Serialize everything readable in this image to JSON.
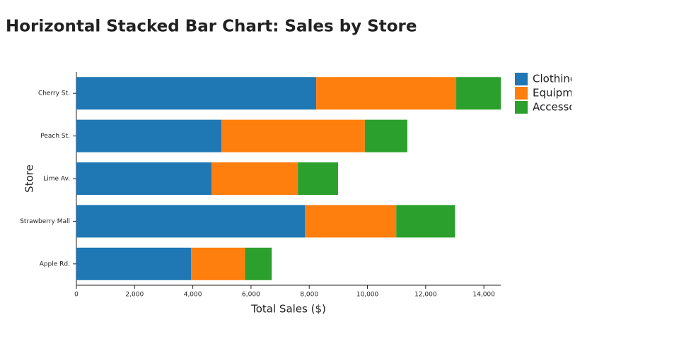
{
  "chart_data": {
    "type": "stacked-barh",
    "title": "Horizontal Stacked Bar Chart: Sales by Store",
    "x_label": "Total Sales ($)",
    "y_label": "Store",
    "categories": [
      "Apple Rd.",
      "Strawberry Mall",
      "Lime Av.",
      "Peach St.",
      "Cherry St."
    ],
    "series": [
      {
        "name": "Clothing",
        "color": "#1f77b4",
        "values": [
          3940,
          7850,
          4640,
          4980,
          8240
        ]
      },
      {
        "name": "Equipment",
        "color": "#ff7f0e",
        "values": [
          1850,
          3140,
          2970,
          4930,
          4810
        ]
      },
      {
        "name": "Accessories",
        "color": "#2ca02c",
        "values": [
          920,
          2020,
          1380,
          1460,
          1530
        ]
      }
    ],
    "xlim": [
      0,
      14580
    ],
    "xticks": [
      0,
      {
        "value": 2000,
        "label": "2,000"
      },
      {
        "value": 4000,
        "label": "4,000"
      },
      {
        "value": 6000,
        "label": "6,000"
      },
      {
        "value": 8000,
        "label": "8,000"
      },
      {
        "value": 10000,
        "label": "10,000"
      },
      {
        "value": 12000,
        "label": "12,000"
      },
      {
        "value": 14000,
        "label": "14,000"
      }
    ],
    "legend": "right"
  }
}
